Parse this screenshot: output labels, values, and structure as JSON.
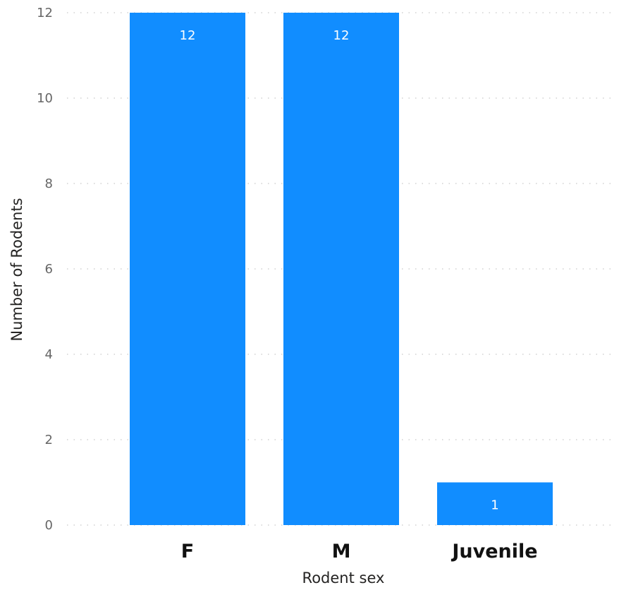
{
  "chart_data": {
    "type": "bar",
    "categories": [
      "F",
      "M",
      "Juvenile"
    ],
    "values": [
      12,
      12,
      1
    ],
    "xlabel": "Rodent sex",
    "ylabel": "Number of Rodents",
    "ylim": [
      0,
      12
    ],
    "yticks": [
      0,
      2,
      4,
      6,
      8,
      10,
      12
    ],
    "grid": true,
    "data_labels": true,
    "bar_color": "#118DFF",
    "label_inside_color": "#ffffff",
    "label_outside_color": "#666666",
    "gridline_color": "#c8c8c8"
  }
}
